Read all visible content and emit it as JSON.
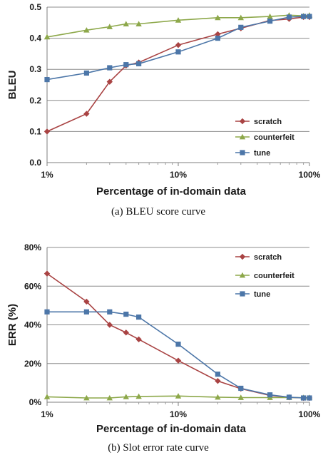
{
  "chart_data": [
    {
      "type": "line",
      "caption": "(a) BLEU score curve",
      "xlabel": "Percentage of in-domain data",
      "ylabel": "BLEU",
      "x_scale": "log",
      "xlim": [
        1,
        100
      ],
      "ylim": [
        0,
        0.5
      ],
      "x_ticks": [
        1,
        10,
        100
      ],
      "x_tick_labels": [
        "1%",
        "10%",
        "100%"
      ],
      "y_ticks": [
        0,
        0.1,
        0.2,
        0.3,
        0.4,
        0.5
      ],
      "y_tick_labels": [
        "0.0",
        "0.1",
        "0.2",
        "0.3",
        "0.4",
        "0.5"
      ],
      "grid": "horizontal",
      "legend_position": "bottom-right",
      "x": [
        1,
        2,
        3,
        4,
        5,
        10,
        20,
        30,
        50,
        70,
        90,
        100
      ],
      "series": [
        {
          "name": "scratch",
          "color": "#a94343",
          "marker": "diamond",
          "values": [
            0.1,
            0.157,
            0.26,
            0.312,
            0.322,
            0.378,
            0.413,
            0.432,
            0.457,
            0.462,
            0.468,
            0.468
          ]
        },
        {
          "name": "counterfeit",
          "color": "#8da84a",
          "marker": "triangle",
          "values": [
            0.404,
            0.426,
            0.437,
            0.446,
            0.446,
            0.458,
            0.466,
            0.466,
            0.47,
            0.474,
            0.472,
            0.474
          ]
        },
        {
          "name": "tune",
          "color": "#4c76a8",
          "marker": "square",
          "values": [
            0.267,
            0.288,
            0.305,
            0.315,
            0.318,
            0.356,
            0.4,
            0.435,
            0.455,
            0.468,
            0.47,
            0.47
          ]
        }
      ]
    },
    {
      "type": "line",
      "caption": "(b) Slot error rate curve",
      "xlabel": "Percentage of in-domain data",
      "ylabel": "ERR (%)",
      "x_scale": "log",
      "xlim": [
        1,
        100
      ],
      "ylim": [
        0,
        80
      ],
      "x_ticks": [
        1,
        10,
        100
      ],
      "x_tick_labels": [
        "1%",
        "10%",
        "100%"
      ],
      "y_ticks": [
        0,
        20,
        40,
        60,
        80
      ],
      "y_tick_labels": [
        "0%",
        "20%",
        "40%",
        "60%",
        "80%"
      ],
      "grid": "horizontal",
      "legend_position": "top-right",
      "x": [
        1,
        2,
        3,
        4,
        5,
        10,
        20,
        30,
        50,
        70,
        90,
        100
      ],
      "series": [
        {
          "name": "scratch",
          "color": "#a94343",
          "marker": "diamond",
          "values": [
            66.5,
            52,
            40,
            36,
            32.5,
            21.5,
            11,
            7,
            3.5,
            2.5,
            2.2,
            2.2
          ]
        },
        {
          "name": "counterfeit",
          "color": "#8da84a",
          "marker": "triangle",
          "values": [
            2.8,
            2.2,
            2.2,
            2.8,
            3,
            3.2,
            2.6,
            2.4,
            2.4,
            2.4,
            2.4,
            2.4
          ]
        },
        {
          "name": "tune",
          "color": "#4c76a8",
          "marker": "square",
          "values": [
            46.7,
            46.7,
            46.7,
            45.5,
            44,
            30,
            14.5,
            7.2,
            3.8,
            2.6,
            2.2,
            2.2
          ]
        }
      ]
    }
  ]
}
